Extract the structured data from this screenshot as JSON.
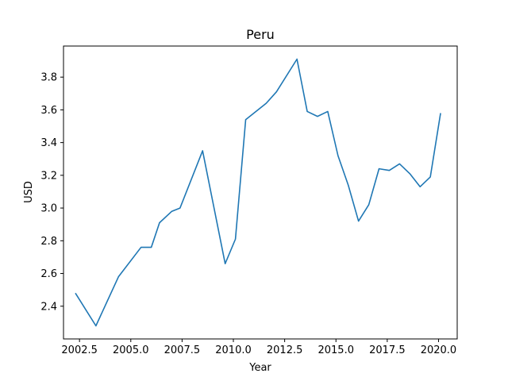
{
  "chart_data": {
    "type": "line",
    "title": "Peru",
    "xlabel": "Year",
    "ylabel": "USD",
    "xlim": [
      2001.72,
      2020.91
    ],
    "ylim": [
      2.2,
      3.99
    ],
    "xticks": [
      2002.5,
      2005.0,
      2007.5,
      2010.0,
      2012.5,
      2015.0,
      2017.5,
      2020.0
    ],
    "xtick_labels": [
      "2002.5",
      "2005.0",
      "2007.5",
      "2010.0",
      "2012.5",
      "2015.0",
      "2017.5",
      "2020.0"
    ],
    "yticks": [
      2.4,
      2.6,
      2.8,
      3.0,
      3.2,
      3.4,
      3.6,
      3.8
    ],
    "ytick_labels": [
      "2.4",
      "2.6",
      "2.8",
      "3.0",
      "3.2",
      "3.4",
      "3.6",
      "3.8"
    ],
    "grid": false,
    "series": [
      {
        "color": "#1f77b4",
        "x": [
          2002.3,
          2002.8,
          2003.3,
          2004.4,
          2005.5,
          2006.0,
          2006.4,
          2007.0,
          2007.4,
          2008.5,
          2009.6,
          2010.1,
          2010.6,
          2011.6,
          2012.1,
          2013.1,
          2013.6,
          2014.1,
          2014.6,
          2015.1,
          2015.6,
          2016.1,
          2016.6,
          2017.1,
          2017.6,
          2018.1,
          2018.6,
          2019.1,
          2019.6,
          2020.1
        ],
        "y": [
          2.48,
          2.38,
          2.28,
          2.58,
          2.76,
          2.76,
          2.91,
          2.98,
          3.0,
          3.35,
          2.66,
          2.81,
          3.54,
          3.64,
          3.71,
          3.91,
          3.59,
          3.56,
          3.59,
          3.32,
          3.14,
          2.92,
          3.02,
          3.24,
          3.23,
          3.27,
          3.21,
          3.13,
          3.19,
          3.58
        ]
      }
    ]
  }
}
